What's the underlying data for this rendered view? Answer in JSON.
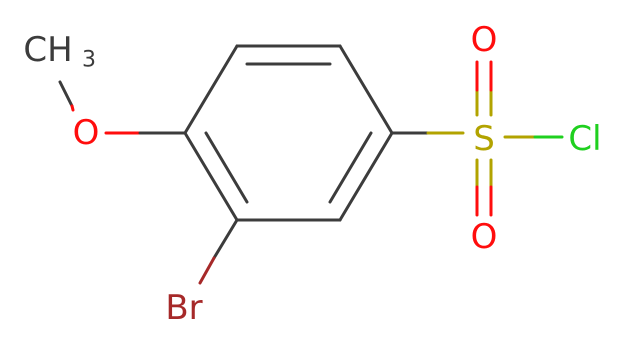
{
  "atoms": {
    "methyl": {
      "symbol": "CH",
      "subscript": "3"
    },
    "methoxy_oxygen": "O",
    "bromine": "Br",
    "sulfur": "S",
    "sulfonyl_oxygen_top": "O",
    "sulfonyl_oxygen_bottom": "O",
    "chlorine": "Cl"
  }
}
